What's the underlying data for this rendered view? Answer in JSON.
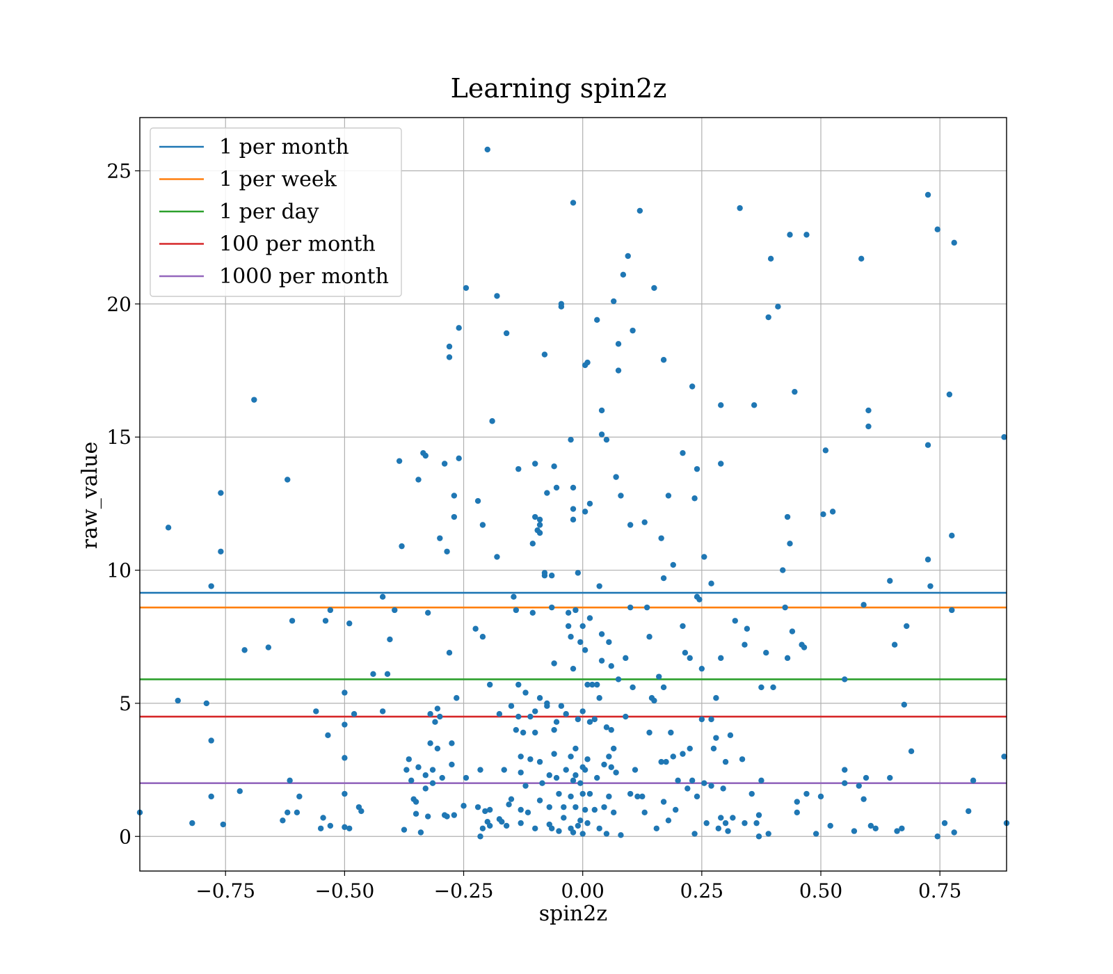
{
  "chart_data": {
    "type": "scatter",
    "title": "Learning spin2z",
    "xlabel": "spin2z",
    "ylabel": "raw_value",
    "xlim": [
      -0.93,
      0.89
    ],
    "ylim": [
      -1.3,
      27.0
    ],
    "xticks": [
      -0.75,
      -0.5,
      -0.25,
      0.0,
      0.25,
      0.5,
      0.75
    ],
    "xtick_labels": [
      "−0.75",
      "−0.50",
      "−0.25",
      "0.00",
      "0.25",
      "0.50",
      "0.75"
    ],
    "yticks": [
      0,
      5,
      10,
      15,
      20,
      25
    ],
    "ytick_labels": [
      "0",
      "5",
      "10",
      "15",
      "20",
      "25"
    ],
    "grid": true,
    "legend_position": "upper-left",
    "point_color": "#1f77b4",
    "hlines": [
      {
        "name": "1 per month",
        "y": 9.15,
        "color": "#1f77b4"
      },
      {
        "name": "1 per week",
        "y": 8.6,
        "color": "#ff7f0e"
      },
      {
        "name": "1 per day",
        "y": 5.9,
        "color": "#2ca02c"
      },
      {
        "name": "100 per month",
        "y": 4.5,
        "color": "#d62728"
      },
      {
        "name": "1000 per month",
        "y": 2.0,
        "color": "#9467bd"
      }
    ],
    "points": [
      [
        -0.93,
        0.9
      ],
      [
        -0.87,
        11.6
      ],
      [
        -0.85,
        5.1
      ],
      [
        -0.82,
        0.5
      ],
      [
        -0.79,
        5.0
      ],
      [
        -0.78,
        9.4
      ],
      [
        -0.78,
        3.6
      ],
      [
        -0.78,
        1.5
      ],
      [
        -0.76,
        12.9
      ],
      [
        -0.76,
        10.7
      ],
      [
        -0.755,
        0.45
      ],
      [
        -0.72,
        1.7
      ],
      [
        -0.71,
        7.0
      ],
      [
        -0.69,
        16.4
      ],
      [
        -0.66,
        7.1
      ],
      [
        -0.63,
        0.6
      ],
      [
        -0.62,
        13.4
      ],
      [
        -0.615,
        2.1
      ],
      [
        -0.62,
        0.9
      ],
      [
        -0.61,
        8.1
      ],
      [
        -0.6,
        0.9
      ],
      [
        -0.595,
        1.5
      ],
      [
        -0.56,
        4.7
      ],
      [
        -0.55,
        0.3
      ],
      [
        -0.545,
        0.7
      ],
      [
        -0.54,
        8.1
      ],
      [
        -0.535,
        3.8
      ],
      [
        -0.53,
        0.4
      ],
      [
        -0.53,
        8.5
      ],
      [
        -0.5,
        5.4
      ],
      [
        -0.5,
        4.2
      ],
      [
        -0.5,
        2.95
      ],
      [
        -0.5,
        1.6
      ],
      [
        -0.5,
        0.35
      ],
      [
        -0.49,
        8.0
      ],
      [
        -0.49,
        0.3
      ],
      [
        -0.48,
        4.6
      ],
      [
        -0.47,
        1.1
      ],
      [
        -0.465,
        0.95
      ],
      [
        -0.44,
        6.1
      ],
      [
        -0.42,
        9.0
      ],
      [
        -0.42,
        4.7
      ],
      [
        -0.41,
        6.1
      ],
      [
        -0.405,
        7.4
      ],
      [
        -0.395,
        8.5
      ],
      [
        -0.385,
        14.1
      ],
      [
        -0.38,
        10.9
      ],
      [
        -0.375,
        0.25
      ],
      [
        -0.37,
        2.5
      ],
      [
        -0.365,
        2.9
      ],
      [
        -0.36,
        2.1
      ],
      [
        -0.355,
        1.4
      ],
      [
        -0.35,
        0.85
      ],
      [
        -0.345,
        13.4
      ],
      [
        -0.35,
        1.3
      ],
      [
        -0.345,
        2.6
      ],
      [
        -0.34,
        0.15
      ],
      [
        -0.335,
        14.4
      ],
      [
        -0.33,
        14.3
      ],
      [
        -0.33,
        2.3
      ],
      [
        -0.33,
        1.8
      ],
      [
        -0.325,
        0.75
      ],
      [
        -0.325,
        8.4
      ],
      [
        -0.32,
        4.6
      ],
      [
        -0.32,
        3.5
      ],
      [
        -0.315,
        2.5
      ],
      [
        -0.315,
        2.0
      ],
      [
        -0.31,
        4.3
      ],
      [
        -0.305,
        3.3
      ],
      [
        -0.305,
        4.8
      ],
      [
        -0.3,
        11.2
      ],
      [
        -0.3,
        4.5
      ],
      [
        -0.295,
        2.2
      ],
      [
        -0.29,
        14.0
      ],
      [
        -0.29,
        0.8
      ],
      [
        -0.285,
        0.75
      ],
      [
        -0.285,
        10.7
      ],
      [
        -0.28,
        6.9
      ],
      [
        -0.28,
        18.0
      ],
      [
        -0.28,
        18.4
      ],
      [
        -0.275,
        2.7
      ],
      [
        -0.275,
        3.5
      ],
      [
        -0.27,
        12.8
      ],
      [
        -0.27,
        12.0
      ],
      [
        -0.27,
        0.8
      ],
      [
        -0.265,
        5.2
      ],
      [
        -0.26,
        19.1
      ],
      [
        -0.26,
        14.2
      ],
      [
        -0.25,
        1.15
      ],
      [
        -0.245,
        20.6
      ],
      [
        -0.245,
        2.2
      ],
      [
        -0.225,
        7.8
      ],
      [
        -0.22,
        12.6
      ],
      [
        -0.22,
        1.1
      ],
      [
        -0.215,
        0.0
      ],
      [
        -0.215,
        2.5
      ],
      [
        -0.21,
        0.3
      ],
      [
        -0.21,
        11.7
      ],
      [
        -0.21,
        7.5
      ],
      [
        -0.205,
        0.95
      ],
      [
        -0.2,
        25.8
      ],
      [
        -0.2,
        0.55
      ],
      [
        -0.195,
        5.7
      ],
      [
        -0.195,
        1.0
      ],
      [
        -0.195,
        0.4
      ],
      [
        -0.19,
        15.6
      ],
      [
        -0.18,
        20.3
      ],
      [
        -0.18,
        10.5
      ],
      [
        -0.175,
        4.6
      ],
      [
        -0.175,
        0.65
      ],
      [
        -0.17,
        0.55
      ],
      [
        -0.165,
        2.5
      ],
      [
        -0.16,
        18.9
      ],
      [
        -0.16,
        0.4
      ],
      [
        -0.155,
        1.2
      ],
      [
        -0.15,
        1.4
      ],
      [
        -0.15,
        4.9
      ],
      [
        -0.145,
        9.0
      ],
      [
        -0.14,
        4.0
      ],
      [
        -0.14,
        8.5
      ],
      [
        -0.135,
        13.8
      ],
      [
        -0.135,
        5.7
      ],
      [
        -0.135,
        4.5
      ],
      [
        -0.13,
        3.0
      ],
      [
        -0.13,
        2.4
      ],
      [
        -0.13,
        1.0
      ],
      [
        -0.13,
        0.5
      ],
      [
        -0.125,
        3.9
      ],
      [
        -0.12,
        5.4
      ],
      [
        -0.12,
        1.9
      ],
      [
        -0.115,
        0.9
      ],
      [
        -0.11,
        2.9
      ],
      [
        -0.11,
        4.5
      ],
      [
        -0.105,
        11.0
      ],
      [
        -0.105,
        8.4
      ],
      [
        -0.1,
        12.0
      ],
      [
        -0.1,
        14.0
      ],
      [
        -0.1,
        4.7
      ],
      [
        -0.1,
        3.9
      ],
      [
        -0.1,
        0.3
      ],
      [
        -0.095,
        11.5
      ],
      [
        -0.09,
        11.9
      ],
      [
        -0.09,
        11.7
      ],
      [
        -0.09,
        11.4
      ],
      [
        -0.09,
        5.2
      ],
      [
        -0.09,
        2.8
      ],
      [
        -0.09,
        1.35
      ],
      [
        -0.085,
        2.0
      ],
      [
        -0.08,
        9.8
      ],
      [
        -0.08,
        9.9
      ],
      [
        -0.08,
        18.1
      ],
      [
        -0.075,
        12.9
      ],
      [
        -0.075,
        5.0
      ],
      [
        -0.075,
        4.9
      ],
      [
        -0.07,
        2.3
      ],
      [
        -0.07,
        1.1
      ],
      [
        -0.07,
        0.45
      ],
      [
        -0.065,
        8.6
      ],
      [
        -0.065,
        9.8
      ],
      [
        -0.065,
        0.3
      ],
      [
        -0.06,
        13.9
      ],
      [
        -0.06,
        6.5
      ],
      [
        -0.06,
        4.0
      ],
      [
        -0.06,
        3.1
      ],
      [
        -0.055,
        13.1
      ],
      [
        -0.055,
        4.3
      ],
      [
        -0.055,
        2.2
      ],
      [
        -0.05,
        1.6
      ],
      [
        -0.05,
        0.2
      ],
      [
        -0.045,
        20.0
      ],
      [
        -0.045,
        19.9
      ],
      [
        -0.045,
        4.9
      ],
      [
        -0.04,
        1.1
      ],
      [
        -0.04,
        0.7
      ],
      [
        -0.035,
        4.6
      ],
      [
        -0.035,
        2.5
      ],
      [
        -0.03,
        8.4
      ],
      [
        -0.03,
        7.9
      ],
      [
        -0.025,
        14.9
      ],
      [
        -0.025,
        7.5
      ],
      [
        -0.025,
        3.0
      ],
      [
        -0.025,
        1.5
      ],
      [
        -0.025,
        0.3
      ],
      [
        -0.02,
        23.8
      ],
      [
        -0.02,
        13.1
      ],
      [
        -0.02,
        12.3
      ],
      [
        -0.02,
        11.9
      ],
      [
        -0.02,
        6.3
      ],
      [
        -0.02,
        2.1
      ],
      [
        -0.02,
        0.15
      ],
      [
        -0.015,
        8.5
      ],
      [
        -0.015,
        3.3
      ],
      [
        -0.015,
        2.3
      ],
      [
        -0.015,
        1.1
      ],
      [
        -0.01,
        9.9
      ],
      [
        -0.01,
        4.4
      ],
      [
        -0.01,
        0.4
      ],
      [
        -0.005,
        7.3
      ],
      [
        -0.005,
        2.0
      ],
      [
        -0.005,
        0.6
      ],
      [
        0.0,
        7.9
      ],
      [
        0.0,
        4.7
      ],
      [
        0.0,
        2.6
      ],
      [
        0.0,
        1.6
      ],
      [
        0.0,
        0.1
      ],
      [
        0.005,
        17.7
      ],
      [
        0.005,
        12.2
      ],
      [
        0.005,
        7.0
      ],
      [
        0.005,
        2.5
      ],
      [
        0.005,
        1.0
      ],
      [
        0.01,
        17.8
      ],
      [
        0.01,
        5.7
      ],
      [
        0.01,
        2.9
      ],
      [
        0.01,
        0.5
      ],
      [
        0.015,
        12.5
      ],
      [
        0.015,
        8.2
      ],
      [
        0.015,
        4.3
      ],
      [
        0.015,
        1.6
      ],
      [
        0.02,
        5.7
      ],
      [
        0.025,
        4.4
      ],
      [
        0.025,
        1.0
      ],
      [
        0.03,
        19.4
      ],
      [
        0.03,
        5.7
      ],
      [
        0.03,
        2.2
      ],
      [
        0.035,
        9.4
      ],
      [
        0.035,
        5.2
      ],
      [
        0.035,
        0.3
      ],
      [
        0.04,
        16.0
      ],
      [
        0.04,
        15.1
      ],
      [
        0.04,
        7.6
      ],
      [
        0.04,
        6.6
      ],
      [
        0.045,
        2.7
      ],
      [
        0.045,
        1.1
      ],
      [
        0.05,
        14.9
      ],
      [
        0.05,
        4.1
      ],
      [
        0.05,
        0.1
      ],
      [
        0.055,
        7.3
      ],
      [
        0.055,
        3.0
      ],
      [
        0.055,
        1.5
      ],
      [
        0.06,
        6.4
      ],
      [
        0.06,
        4.0
      ],
      [
        0.06,
        2.6
      ],
      [
        0.065,
        20.1
      ],
      [
        0.065,
        3.3
      ],
      [
        0.065,
        0.9
      ],
      [
        0.07,
        13.5
      ],
      [
        0.07,
        2.4
      ],
      [
        0.075,
        18.5
      ],
      [
        0.075,
        17.5
      ],
      [
        0.075,
        5.9
      ],
      [
        0.08,
        12.8
      ],
      [
        0.08,
        0.05
      ],
      [
        0.085,
        21.1
      ],
      [
        0.09,
        6.7
      ],
      [
        0.09,
        4.5
      ],
      [
        0.095,
        21.8
      ],
      [
        0.1,
        11.7
      ],
      [
        0.1,
        8.6
      ],
      [
        0.1,
        1.6
      ],
      [
        0.105,
        19.0
      ],
      [
        0.105,
        5.6
      ],
      [
        0.11,
        2.5
      ],
      [
        0.115,
        1.5
      ],
      [
        0.12,
        23.5
      ],
      [
        0.125,
        1.5
      ],
      [
        0.13,
        11.8
      ],
      [
        0.13,
        0.9
      ],
      [
        0.135,
        8.6
      ],
      [
        0.14,
        7.5
      ],
      [
        0.14,
        3.9
      ],
      [
        0.145,
        5.2
      ],
      [
        0.15,
        20.6
      ],
      [
        0.15,
        5.1
      ],
      [
        0.155,
        0.3
      ],
      [
        0.16,
        6.0
      ],
      [
        0.165,
        11.2
      ],
      [
        0.165,
        2.8
      ],
      [
        0.17,
        17.9
      ],
      [
        0.17,
        9.7
      ],
      [
        0.17,
        5.6
      ],
      [
        0.17,
        1.3
      ],
      [
        0.175,
        2.8
      ],
      [
        0.18,
        12.8
      ],
      [
        0.18,
        0.6
      ],
      [
        0.185,
        3.9
      ],
      [
        0.19,
        10.2
      ],
      [
        0.19,
        3.0
      ],
      [
        0.195,
        1.0
      ],
      [
        0.2,
        2.1
      ],
      [
        0.21,
        14.4
      ],
      [
        0.21,
        7.9
      ],
      [
        0.21,
        3.1
      ],
      [
        0.215,
        6.9
      ],
      [
        0.22,
        1.8
      ],
      [
        0.225,
        6.7
      ],
      [
        0.225,
        3.3
      ],
      [
        0.23,
        16.9
      ],
      [
        0.23,
        2.1
      ],
      [
        0.235,
        12.7
      ],
      [
        0.235,
        0.1
      ],
      [
        0.24,
        13.8
      ],
      [
        0.24,
        9.0
      ],
      [
        0.24,
        1.5
      ],
      [
        0.245,
        8.9
      ],
      [
        0.25,
        6.3
      ],
      [
        0.25,
        4.4
      ],
      [
        0.255,
        10.5
      ],
      [
        0.255,
        2.0
      ],
      [
        0.26,
        0.5
      ],
      [
        0.27,
        9.5
      ],
      [
        0.27,
        4.4
      ],
      [
        0.27,
        1.9
      ],
      [
        0.275,
        3.3
      ],
      [
        0.28,
        5.2
      ],
      [
        0.28,
        3.7
      ],
      [
        0.285,
        0.3
      ],
      [
        0.29,
        16.2
      ],
      [
        0.29,
        14.0
      ],
      [
        0.29,
        6.7
      ],
      [
        0.29,
        0.7
      ],
      [
        0.295,
        1.8
      ],
      [
        0.3,
        2.8
      ],
      [
        0.3,
        0.5
      ],
      [
        0.305,
        0.2
      ],
      [
        0.31,
        3.8
      ],
      [
        0.315,
        0.7
      ],
      [
        0.32,
        8.1
      ],
      [
        0.33,
        23.6
      ],
      [
        0.335,
        2.9
      ],
      [
        0.34,
        7.2
      ],
      [
        0.34,
        0.5
      ],
      [
        0.345,
        7.8
      ],
      [
        0.355,
        1.6
      ],
      [
        0.36,
        16.2
      ],
      [
        0.365,
        0.5
      ],
      [
        0.37,
        0.8
      ],
      [
        0.37,
        0.0
      ],
      [
        0.375,
        5.6
      ],
      [
        0.375,
        2.1
      ],
      [
        0.385,
        6.9
      ],
      [
        0.39,
        19.5
      ],
      [
        0.39,
        0.1
      ],
      [
        0.395,
        21.7
      ],
      [
        0.4,
        5.6
      ],
      [
        0.41,
        19.9
      ],
      [
        0.42,
        10.0
      ],
      [
        0.425,
        8.6
      ],
      [
        0.43,
        12.0
      ],
      [
        0.43,
        6.7
      ],
      [
        0.435,
        22.6
      ],
      [
        0.435,
        11.0
      ],
      [
        0.44,
        7.7
      ],
      [
        0.445,
        16.7
      ],
      [
        0.45,
        1.3
      ],
      [
        0.45,
        0.9
      ],
      [
        0.46,
        7.2
      ],
      [
        0.465,
        7.1
      ],
      [
        0.47,
        22.6
      ],
      [
        0.47,
        1.6
      ],
      [
        0.49,
        0.1
      ],
      [
        0.5,
        1.5
      ],
      [
        0.505,
        12.1
      ],
      [
        0.51,
        14.5
      ],
      [
        0.52,
        0.4
      ],
      [
        0.525,
        12.2
      ],
      [
        0.55,
        5.9
      ],
      [
        0.55,
        2.5
      ],
      [
        0.55,
        2.0
      ],
      [
        0.57,
        0.2
      ],
      [
        0.58,
        1.9
      ],
      [
        0.585,
        21.7
      ],
      [
        0.59,
        8.7
      ],
      [
        0.59,
        1.4
      ],
      [
        0.595,
        2.2
      ],
      [
        0.6,
        16.0
      ],
      [
        0.6,
        15.4
      ],
      [
        0.605,
        0.4
      ],
      [
        0.615,
        0.3
      ],
      [
        0.645,
        9.6
      ],
      [
        0.645,
        2.2
      ],
      [
        0.655,
        7.2
      ],
      [
        0.66,
        0.2
      ],
      [
        0.67,
        0.3
      ],
      [
        0.675,
        4.95
      ],
      [
        0.68,
        7.9
      ],
      [
        0.69,
        3.2
      ],
      [
        0.725,
        24.1
      ],
      [
        0.725,
        14.7
      ],
      [
        0.725,
        10.4
      ],
      [
        0.73,
        9.4
      ],
      [
        0.745,
        22.8
      ],
      [
        0.745,
        0.0
      ],
      [
        0.76,
        0.5
      ],
      [
        0.77,
        16.6
      ],
      [
        0.775,
        11.3
      ],
      [
        0.775,
        8.5
      ],
      [
        0.78,
        22.3
      ],
      [
        0.78,
        0.15
      ],
      [
        0.81,
        0.95
      ],
      [
        0.82,
        2.1
      ],
      [
        0.885,
        15.0
      ],
      [
        0.885,
        3.0
      ],
      [
        0.89,
        0.5
      ]
    ]
  }
}
